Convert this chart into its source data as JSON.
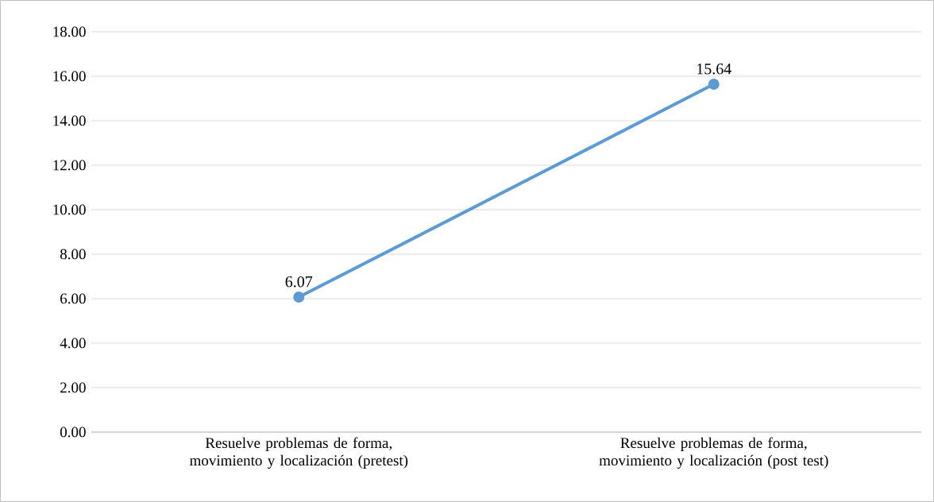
{
  "chart_data": {
    "type": "line",
    "categories": [
      "Resuelve problemas de forma, movimiento y localización (pretest)",
      "Resuelve problemas de forma, movimiento y localización (post test)"
    ],
    "values": [
      6.07,
      15.64
    ],
    "color": "#5b9bd5",
    "ylim": [
      0,
      18
    ],
    "yticks": [
      {
        "value": 0,
        "label": "0.00"
      },
      {
        "value": 2,
        "label": "2.00"
      },
      {
        "value": 4,
        "label": "4.00"
      },
      {
        "value": 6,
        "label": "6.00"
      },
      {
        "value": 8,
        "label": "8.00"
      },
      {
        "value": 10,
        "label": "10.00"
      },
      {
        "value": 12,
        "label": "12.00"
      },
      {
        "value": 14,
        "label": "14.00"
      },
      {
        "value": 16,
        "label": "16.00"
      },
      {
        "value": 18,
        "label": "18.00"
      }
    ],
    "grid": "y",
    "marker": "circle",
    "line_style": "solid",
    "data_labels": true
  }
}
